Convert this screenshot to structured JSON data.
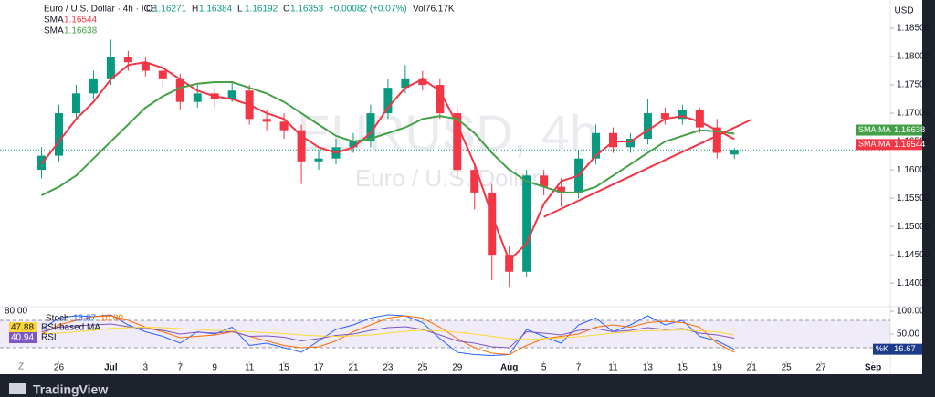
{
  "app": {
    "brand": "TradingView"
  },
  "chart_data": {
    "type": "candlestick",
    "symbol": "Euro / U.S. Dollar · 4h · ICE",
    "ohlc_keys": [
      "O",
      "H",
      "L",
      "C"
    ],
    "change": "+0.00082 (+0.07%)",
    "volume": "Vol76.17K",
    "watermark": "EURUSD, 4h",
    "watermark_sub": "Euro / U.S. Dollar",
    "currency": "USD",
    "corner_label": "Z",
    "up_color": "#089981",
    "down_color": "#f23645",
    "x": [
      0,
      1,
      2,
      3,
      4,
      5,
      6,
      7,
      8,
      9,
      10,
      11,
      12,
      13,
      14,
      15,
      16,
      17,
      18,
      19,
      20,
      21,
      22,
      23,
      24,
      25,
      26,
      27,
      28,
      29,
      30,
      31,
      32,
      33,
      34,
      35,
      36,
      37,
      38,
      39,
      40
    ],
    "open": [
      1.16,
      1.1625,
      1.17,
      1.1735,
      1.176,
      1.18,
      1.179,
      1.1775,
      1.176,
      1.172,
      1.1735,
      1.1725,
      1.174,
      1.169,
      1.1685,
      1.167,
      1.1615,
      1.162,
      1.164,
      1.165,
      1.17,
      1.1745,
      1.176,
      1.175,
      1.17,
      1.16,
      1.156,
      1.145,
      1.142,
      1.159,
      1.157,
      1.156,
      1.162,
      1.1665,
      1.164,
      1.1655,
      1.17,
      1.169,
      1.1705,
      1.1675,
      1.16271
    ],
    "high": [
      1.164,
      1.1715,
      1.175,
      1.1775,
      1.183,
      1.181,
      1.18,
      1.1785,
      1.177,
      1.175,
      1.1745,
      1.1755,
      1.175,
      1.1705,
      1.17,
      1.168,
      1.1635,
      1.1655,
      1.1665,
      1.1715,
      1.176,
      1.1785,
      1.1775,
      1.176,
      1.171,
      1.161,
      1.1575,
      1.1465,
      1.16,
      1.16,
      1.1585,
      1.1635,
      1.168,
      1.1675,
      1.1665,
      1.1725,
      1.171,
      1.1715,
      1.171,
      1.169,
      1.16384
    ],
    "low": [
      1.1585,
      1.1615,
      1.169,
      1.1725,
      1.175,
      1.1775,
      1.1765,
      1.1745,
      1.1705,
      1.171,
      1.171,
      1.172,
      1.168,
      1.167,
      1.1655,
      1.1575,
      1.16,
      1.161,
      1.163,
      1.164,
      1.169,
      1.1735,
      1.174,
      1.169,
      1.1585,
      1.153,
      1.1405,
      1.1392,
      1.141,
      1.1555,
      1.1535,
      1.155,
      1.161,
      1.163,
      1.163,
      1.1645,
      1.168,
      1.168,
      1.1665,
      1.162,
      1.16192
    ],
    "close": [
      1.1625,
      1.17,
      1.1735,
      1.176,
      1.18,
      1.179,
      1.1775,
      1.176,
      1.172,
      1.1735,
      1.1725,
      1.174,
      1.169,
      1.1685,
      1.167,
      1.1615,
      1.162,
      1.164,
      1.165,
      1.17,
      1.1745,
      1.176,
      1.175,
      1.17,
      1.16,
      1.156,
      1.145,
      1.142,
      1.159,
      1.157,
      1.156,
      1.162,
      1.1665,
      1.164,
      1.1655,
      1.17,
      1.169,
      1.1705,
      1.1675,
      1.163,
      1.16353
    ],
    "series": [
      {
        "name": "SMA",
        "tag": "SMA:MA",
        "color": "#f23645",
        "values": [
          1.161,
          1.165,
          1.169,
          1.172,
          1.176,
          1.1785,
          1.179,
          1.178,
          1.176,
          1.174,
          1.173,
          1.1725,
          1.1715,
          1.17,
          1.169,
          1.166,
          1.164,
          1.163,
          1.164,
          1.1665,
          1.171,
          1.1745,
          1.176,
          1.174,
          1.168,
          1.161,
          1.152,
          1.144,
          1.147,
          1.154,
          1.158,
          1.159,
          1.1625,
          1.165,
          1.165,
          1.167,
          1.169,
          1.1695,
          1.1685,
          1.167,
          1.16544
        ]
      },
      {
        "name": "SMA",
        "tag": "SMA:MA",
        "color": "#43a047",
        "values": [
          1.1555,
          1.157,
          1.159,
          1.162,
          1.165,
          1.168,
          1.171,
          1.173,
          1.1745,
          1.1752,
          1.1755,
          1.1755,
          1.1745,
          1.1735,
          1.172,
          1.17,
          1.168,
          1.166,
          1.165,
          1.1655,
          1.1665,
          1.1675,
          1.169,
          1.1695,
          1.169,
          1.1665,
          1.163,
          1.16,
          1.158,
          1.157,
          1.156,
          1.156,
          1.157,
          1.159,
          1.161,
          1.163,
          1.165,
          1.166,
          1.167,
          1.1668,
          1.16638
        ]
      }
    ],
    "trendline": {
      "color": "#f23645",
      "x": [
        29,
        41
      ],
      "y": [
        1.1517,
        1.1689
      ]
    },
    "xlim": [
      -2.4,
      49
    ],
    "xticks": [
      {
        "value": 1,
        "label": "26"
      },
      {
        "value": 4,
        "label": "Jul"
      },
      {
        "value": 6,
        "label": "3"
      },
      {
        "value": 8,
        "label": "7"
      },
      {
        "value": 10,
        "label": "9"
      },
      {
        "value": 12,
        "label": "11"
      },
      {
        "value": 14,
        "label": "15"
      },
      {
        "value": 16,
        "label": "17"
      },
      {
        "value": 18,
        "label": "21"
      },
      {
        "value": 20,
        "label": "23"
      },
      {
        "value": 22,
        "label": "25"
      },
      {
        "value": 24,
        "label": "29"
      },
      {
        "value": 27,
        "label": "Aug"
      },
      {
        "value": 29,
        "label": "5"
      },
      {
        "value": 31,
        "label": "7"
      },
      {
        "value": 33,
        "label": "11"
      },
      {
        "value": 35,
        "label": "13"
      },
      {
        "value": 37,
        "label": "15"
      },
      {
        "value": 39,
        "label": "19"
      },
      {
        "value": 41,
        "label": "21"
      },
      {
        "value": 43,
        "label": "25"
      },
      {
        "value": 45,
        "label": "27"
      },
      {
        "value": 48,
        "label": "Sep"
      }
    ],
    "ylim": [
      1.136,
      1.19
    ],
    "yticks": [
      {
        "value": 1.14,
        "label": "1.14000"
      },
      {
        "value": 1.145,
        "label": "1.14500"
      },
      {
        "value": 1.15,
        "label": "1.15000"
      },
      {
        "value": 1.155,
        "label": "1.15500"
      },
      {
        "value": 1.16,
        "label": "1.16000"
      },
      {
        "value": 1.165,
        "label": "1.16500"
      },
      {
        "value": 1.17,
        "label": "1.17000"
      },
      {
        "value": 1.175,
        "label": "1.17500"
      },
      {
        "value": 1.18,
        "label": "1.18000"
      },
      {
        "value": 1.185,
        "label": "1.18500"
      }
    ],
    "oscillator": {
      "type": "line",
      "scale_label": "80.00",
      "ylim": [
        -8,
        108
      ],
      "yticks": [
        {
          "value": 100,
          "label": "100.00"
        },
        {
          "value": 50,
          "label": "50.00"
        }
      ],
      "band": [
        20,
        80
      ],
      "band_color": "#7e57c2",
      "k_tag": "%K",
      "series": [
        {
          "name": "Stoch",
          "color": "#2962ff",
          "values": [
            60,
            85,
            90,
            88,
            92,
            70,
            55,
            45,
            30,
            55,
            50,
            65,
            25,
            30,
            20,
            10,
            35,
            60,
            70,
            85,
            92,
            90,
            75,
            40,
            10,
            5,
            3,
            5,
            60,
            45,
            30,
            70,
            85,
            55,
            70,
            90,
            70,
            80,
            45,
            35,
            16.67
          ]
        },
        {
          "name": "Stoch D",
          "color": "#ff6d00",
          "values": [
            50,
            70,
            80,
            88,
            90,
            80,
            65,
            55,
            42,
            45,
            48,
            55,
            45,
            35,
            25,
            20,
            22,
            35,
            55,
            70,
            85,
            90,
            85,
            65,
            40,
            20,
            8,
            5,
            25,
            40,
            45,
            50,
            65,
            70,
            65,
            75,
            78,
            75,
            65,
            30,
            10
          ],
          "last_label": "10.00"
        },
        {
          "name": "RSI",
          "color": "#7e57c2",
          "values": [
            55,
            65,
            68,
            70,
            72,
            66,
            62,
            58,
            50,
            54,
            52,
            56,
            45,
            46,
            43,
            35,
            40,
            47,
            50,
            58,
            64,
            66,
            60,
            48,
            35,
            30,
            22,
            20,
            55,
            52,
            48,
            58,
            62,
            55,
            58,
            64,
            60,
            62,
            52,
            48,
            40.94
          ]
        },
        {
          "name": "RSI-based MA",
          "color": "#fdd835",
          "values": [
            50,
            52,
            55,
            58,
            62,
            64,
            65,
            64,
            62,
            60,
            58,
            57,
            55,
            53,
            51,
            48,
            46,
            45,
            46,
            48,
            52,
            56,
            58,
            57,
            54,
            50,
            45,
            40,
            38,
            40,
            42,
            44,
            48,
            52,
            55,
            57,
            58,
            59,
            57,
            55,
            47.88
          ]
        }
      ]
    }
  }
}
